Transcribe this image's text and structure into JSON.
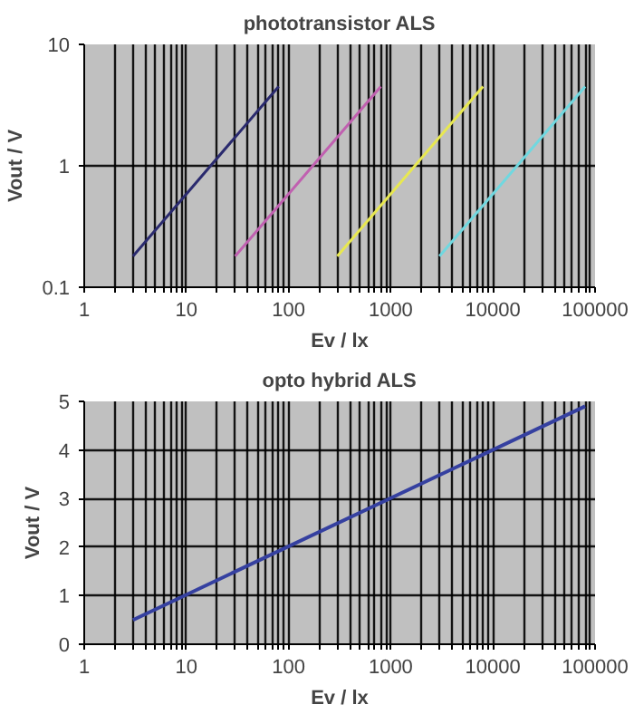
{
  "chart_data": [
    {
      "type": "line",
      "title": "phototransistor ALS",
      "xlabel": "Ev / lx",
      "ylabel": "Vout / V",
      "log": "xy",
      "grid": true,
      "marker": "none",
      "line_style": "solid",
      "xlim": [
        1,
        100000
      ],
      "ylim": [
        0.1,
        10
      ],
      "xticks": [
        1,
        {
          "value": 2,
          "label": null
        },
        {
          "value": 3,
          "label": null
        },
        {
          "value": 4,
          "label": null
        },
        {
          "value": 5,
          "label": null
        },
        {
          "value": 6,
          "label": null
        },
        {
          "value": 7,
          "label": null
        },
        {
          "value": 8,
          "label": null
        },
        {
          "value": 9,
          "label": null
        },
        10,
        {
          "value": 20,
          "label": null
        },
        {
          "value": 30,
          "label": null
        },
        {
          "value": 40,
          "label": null
        },
        {
          "value": 50,
          "label": null
        },
        {
          "value": 60,
          "label": null
        },
        {
          "value": 70,
          "label": null
        },
        {
          "value": 80,
          "label": null
        },
        {
          "value": 90,
          "label": null
        },
        100,
        {
          "value": 200,
          "label": null
        },
        {
          "value": 300,
          "label": null
        },
        {
          "value": 400,
          "label": null
        },
        {
          "value": 500,
          "label": null
        },
        {
          "value": 600,
          "label": null
        },
        {
          "value": 700,
          "label": null
        },
        {
          "value": 800,
          "label": null
        },
        {
          "value": 900,
          "label": null
        },
        1000,
        {
          "value": 2000,
          "label": null
        },
        {
          "value": 3000,
          "label": null
        },
        {
          "value": 4000,
          "label": null
        },
        {
          "value": 5000,
          "label": null
        },
        {
          "value": 6000,
          "label": null
        },
        {
          "value": 7000,
          "label": null
        },
        {
          "value": 8000,
          "label": null
        },
        {
          "value": 9000,
          "label": null
        },
        10000,
        {
          "value": 20000,
          "label": null
        },
        {
          "value": 30000,
          "label": null
        },
        {
          "value": 40000,
          "label": null
        },
        {
          "value": 50000,
          "label": null
        },
        {
          "value": 60000,
          "label": null
        },
        {
          "value": 70000,
          "label": null
        },
        {
          "value": 80000,
          "label": null
        },
        {
          "value": 90000,
          "label": null
        },
        100000
      ],
      "yticks": [
        0.1,
        1,
        10
      ],
      "series": [
        {
          "color": "#2a2a6e",
          "x": [
            3,
            80
          ],
          "values": [
            0.18,
            4.5
          ]
        },
        {
          "color": "#c060b0",
          "x": [
            30,
            800
          ],
          "values": [
            0.18,
            4.5
          ]
        },
        {
          "color": "#e8e850",
          "x": [
            300,
            8000
          ],
          "values": [
            0.18,
            4.5
          ]
        },
        {
          "color": "#70d8e0",
          "x": [
            3000,
            80000
          ],
          "values": [
            0.18,
            4.5
          ]
        }
      ]
    },
    {
      "type": "line",
      "title": "opto hybrid ALS",
      "xlabel": "Ev / lx",
      "ylabel": "Vout / V",
      "log": "x",
      "grid": true,
      "marker": "none",
      "line_style": "solid",
      "xlim": [
        1,
        100000
      ],
      "ylim": [
        0,
        5
      ],
      "xticks": [
        1,
        {
          "value": 2,
          "label": null
        },
        {
          "value": 3,
          "label": null
        },
        {
          "value": 4,
          "label": null
        },
        {
          "value": 5,
          "label": null
        },
        {
          "value": 6,
          "label": null
        },
        {
          "value": 7,
          "label": null
        },
        {
          "value": 8,
          "label": null
        },
        {
          "value": 9,
          "label": null
        },
        10,
        {
          "value": 20,
          "label": null
        },
        {
          "value": 30,
          "label": null
        },
        {
          "value": 40,
          "label": null
        },
        {
          "value": 50,
          "label": null
        },
        {
          "value": 60,
          "label": null
        },
        {
          "value": 70,
          "label": null
        },
        {
          "value": 80,
          "label": null
        },
        {
          "value": 90,
          "label": null
        },
        100,
        {
          "value": 200,
          "label": null
        },
        {
          "value": 300,
          "label": null
        },
        {
          "value": 400,
          "label": null
        },
        {
          "value": 500,
          "label": null
        },
        {
          "value": 600,
          "label": null
        },
        {
          "value": 700,
          "label": null
        },
        {
          "value": 800,
          "label": null
        },
        {
          "value": 900,
          "label": null
        },
        1000,
        {
          "value": 2000,
          "label": null
        },
        {
          "value": 3000,
          "label": null
        },
        {
          "value": 4000,
          "label": null
        },
        {
          "value": 5000,
          "label": null
        },
        {
          "value": 6000,
          "label": null
        },
        {
          "value": 7000,
          "label": null
        },
        {
          "value": 8000,
          "label": null
        },
        {
          "value": 9000,
          "label": null
        },
        10000,
        {
          "value": 20000,
          "label": null
        },
        {
          "value": 30000,
          "label": null
        },
        {
          "value": 40000,
          "label": null
        },
        {
          "value": 50000,
          "label": null
        },
        {
          "value": 60000,
          "label": null
        },
        {
          "value": 70000,
          "label": null
        },
        {
          "value": 80000,
          "label": null
        },
        {
          "value": 90000,
          "label": null
        },
        100000
      ],
      "yticks": [
        0,
        1,
        2,
        3,
        4,
        5
      ],
      "series": [
        {
          "color": "#3540a0",
          "x": [
            3,
            80000
          ],
          "values": [
            0.5,
            4.9
          ]
        }
      ]
    }
  ]
}
